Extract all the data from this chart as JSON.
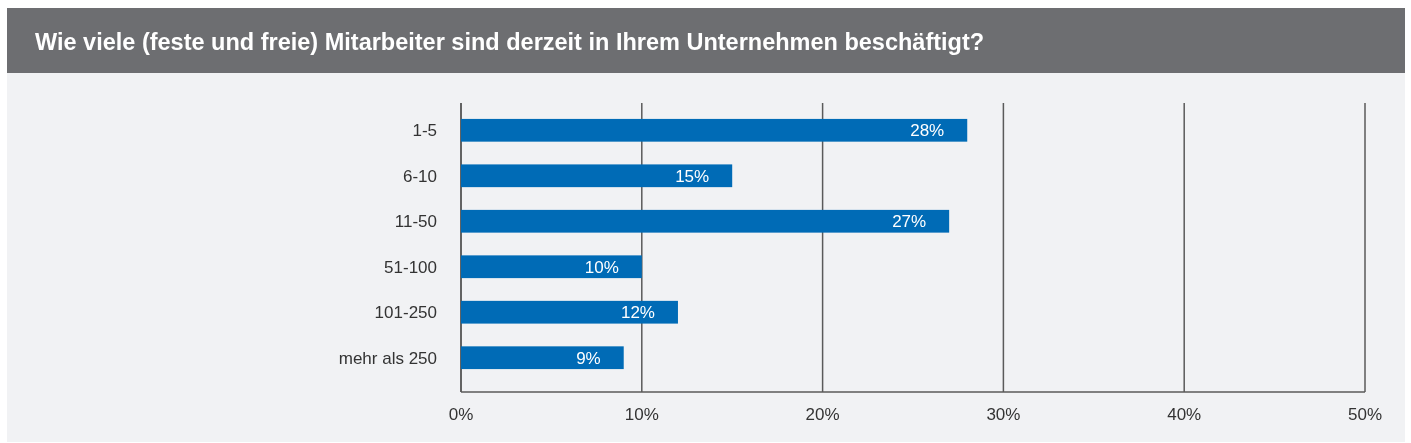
{
  "chart_data": {
    "type": "bar",
    "orientation": "horizontal",
    "title": "Wie viele (feste und freie) Mitarbeiter sind derzeit in Ihrem Unternehmen beschäftigt?",
    "categories": [
      "1-5",
      "6-10",
      "11-50",
      "51-100",
      "101-250",
      "mehr als 250"
    ],
    "values": [
      28,
      15,
      27,
      10,
      12,
      9
    ],
    "color": "#006bb6",
    "value_labels": [
      "28%",
      "15%",
      "27%",
      "10%",
      "12%",
      "9%"
    ],
    "xlim": [
      0,
      50
    ],
    "xticks": [
      {
        "value": 0,
        "label": "0%"
      },
      {
        "value": 10,
        "label": "10%"
      },
      {
        "value": 20,
        "label": "20%"
      },
      {
        "value": 30,
        "label": "30%"
      },
      {
        "value": 40,
        "label": "40%"
      },
      {
        "value": 50,
        "label": "50%"
      }
    ],
    "grid": "x"
  }
}
